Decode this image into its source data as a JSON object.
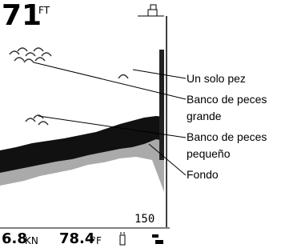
{
  "screen": {
    "depth": "71",
    "depth_unit": "FT",
    "range": "150",
    "speed": "6.8",
    "speed_unit": "KN",
    "temperature": "78.4",
    "temperature_unit": "°F"
  },
  "callouts": [
    "Un solo pez",
    "Banco de peces grande",
    "Banco de peces pequeño",
    "Fondo"
  ]
}
